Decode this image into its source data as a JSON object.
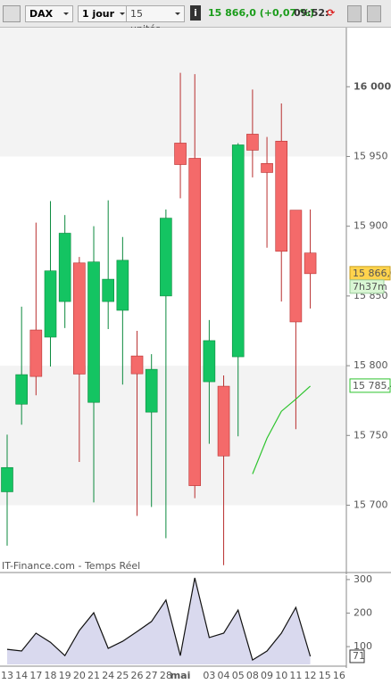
{
  "toolbar": {
    "symbol": "DAX",
    "period": "1 jour",
    "units": "15 unités",
    "quote": "15 866,0 (+0,07 %)",
    "time": "09:52:"
  },
  "chart_data": [
    {
      "type": "candlestick",
      "source": "IT-Finance.com - Temps Réel",
      "categories": [
        "13",
        "14",
        "17",
        "18",
        "19",
        "20",
        "21",
        "24",
        "25",
        "26",
        "27",
        "28",
        "mai",
        null,
        "03",
        "04",
        "05",
        "08",
        "09",
        "10",
        "11",
        "12",
        "15",
        "16"
      ],
      "open": [
        15709.6,
        15772.4,
        15825.6,
        15820.5,
        15846,
        15873.7,
        15773.7,
        15846,
        15839.7,
        15807,
        15766.7,
        15850,
        15959.6,
        15948.7,
        15788.5,
        15785.3,
        15806.4,
        15966,
        15945,
        15961,
        15911.5,
        15880.8,
        null,
        null
      ],
      "high": [
        15750.6,
        15842.3,
        15902.6,
        15918,
        15908,
        15878,
        15900,
        15918.6,
        15892.3,
        15825,
        15808.3,
        15912,
        16010,
        16009,
        15832.7,
        15793,
        15959.6,
        15998,
        15964,
        15988,
        15911.5,
        15912,
        null,
        null
      ],
      "low": [
        15671,
        15757.7,
        15778.8,
        15799.4,
        15827,
        15731,
        15702,
        15826.3,
        15786.5,
        15692.3,
        15698.7,
        15676.3,
        15920,
        15705,
        15744,
        15657,
        15749.4,
        15935,
        15884.6,
        15846,
        15754.5,
        15841,
        null,
        null
      ],
      "close": [
        15727,
        15793.6,
        15792.3,
        15868,
        15895,
        15794,
        15874.4,
        15862,
        15875.6,
        15794.2,
        15797.4,
        15905.8,
        15944.2,
        15714,
        15818,
        15735.3,
        15958.3,
        15954.5,
        15938.5,
        15882,
        15831.4,
        15866.0,
        null,
        null
      ],
      "up_color": "#14c462",
      "down_color": "#f46a6a",
      "series": [
        {
          "color": "#2ec42e",
          "values": [
            null,
            null,
            null,
            null,
            null,
            null,
            null,
            null,
            null,
            null,
            null,
            null,
            null,
            null,
            null,
            null,
            null,
            15722.4,
            15748,
            15767.3,
            15776,
            15785.4,
            null,
            null
          ]
        }
      ],
      "ylim": [
        15653,
        16043
      ],
      "yticks": [
        {
          "value": 16000,
          "label": "16 000"
        },
        {
          "value": 15950,
          "label": "15 950"
        },
        {
          "value": 15900,
          "label": "15 900"
        },
        {
          "value": 15850,
          "label": "15 850"
        },
        {
          "value": 15800,
          "label": "15 800"
        },
        {
          "value": 15750,
          "label": "15 750"
        },
        {
          "value": 15700,
          "label": "15 700"
        }
      ],
      "shaded_ranges": [
        [
          15950,
          16043
        ],
        [
          15700,
          15800
        ]
      ],
      "last_price": {
        "value": 15866.0,
        "label": "15 866,0"
      },
      "countdown": "7h37m",
      "ma_last": {
        "value": 15785.4,
        "label": "15 785,4"
      }
    },
    {
      "type": "area",
      "color": "#d9d9ee",
      "line_color": "#111111",
      "values": [
        92,
        87,
        140,
        113,
        73,
        148,
        201,
        95,
        116,
        145,
        175,
        239,
        73,
        305,
        127,
        140,
        209,
        60,
        87,
        140,
        217,
        71,
        null,
        null
      ],
      "ylim": [
        47,
        313
      ],
      "yticks": [
        100,
        200,
        300
      ],
      "last": {
        "value": 71,
        "label": "71"
      }
    }
  ]
}
